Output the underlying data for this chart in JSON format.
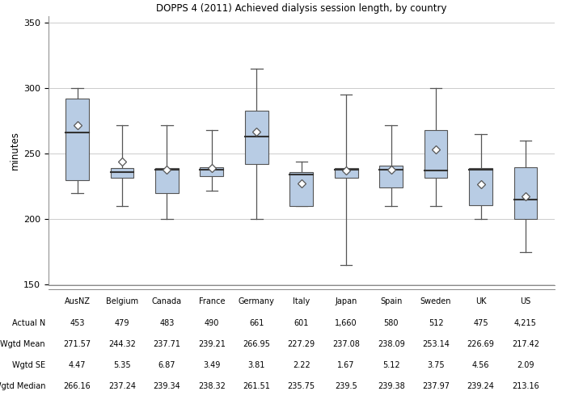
{
  "title": "DOPPS 4 (2011) Achieved dialysis session length, by country",
  "ylabel": "minutes",
  "ylim": [
    150,
    355
  ],
  "yticks": [
    150,
    200,
    250,
    300,
    350
  ],
  "countries": [
    "AusNZ",
    "Belgium",
    "Canada",
    "France",
    "Germany",
    "Italy",
    "Japan",
    "Spain",
    "Sweden",
    "UK",
    "US"
  ],
  "actual_n_str": [
    "453",
    "479",
    "483",
    "490",
    "661",
    "601",
    "1,660",
    "580",
    "512",
    "475",
    "4,215"
  ],
  "wgtd_mean_str": [
    "271.57",
    "244.32",
    "237.71",
    "239.21",
    "266.95",
    "227.29",
    "237.08",
    "238.09",
    "253.14",
    "226.69",
    "217.42"
  ],
  "wgtd_se_str": [
    "4.47",
    "5.35",
    "6.87",
    "3.49",
    "3.81",
    "2.22",
    "1.67",
    "5.12",
    "3.75",
    "4.56",
    "2.09"
  ],
  "wgtd_med_str": [
    "266.16",
    "237.24",
    "239.34",
    "238.32",
    "261.51",
    "235.75",
    "239.5",
    "239.38",
    "237.97",
    "239.24",
    "213.16"
  ],
  "wgtd_mean": [
    271.57,
    244.32,
    237.71,
    239.21,
    266.95,
    227.29,
    237.08,
    238.09,
    253.14,
    226.69,
    217.42
  ],
  "box_q1": [
    230,
    232,
    220,
    233,
    242,
    210,
    232,
    224,
    232,
    211,
    200
  ],
  "box_median": [
    266,
    236,
    238,
    238,
    263,
    234,
    238,
    238,
    237,
    238,
    215
  ],
  "box_q3": [
    292,
    239,
    239,
    240,
    283,
    236,
    239,
    241,
    268,
    239,
    240
  ],
  "whisker_low": [
    220,
    210,
    200,
    222,
    200,
    210,
    165,
    210,
    210,
    200,
    175
  ],
  "whisker_high": [
    300,
    272,
    272,
    268,
    315,
    244,
    295,
    272,
    300,
    265,
    260
  ],
  "box_color": "#b8cce4",
  "box_edge_color": "#555555",
  "median_color": "#333333",
  "whisker_color": "#555555",
  "background_color": "#ffffff",
  "grid_color": "#cccccc"
}
